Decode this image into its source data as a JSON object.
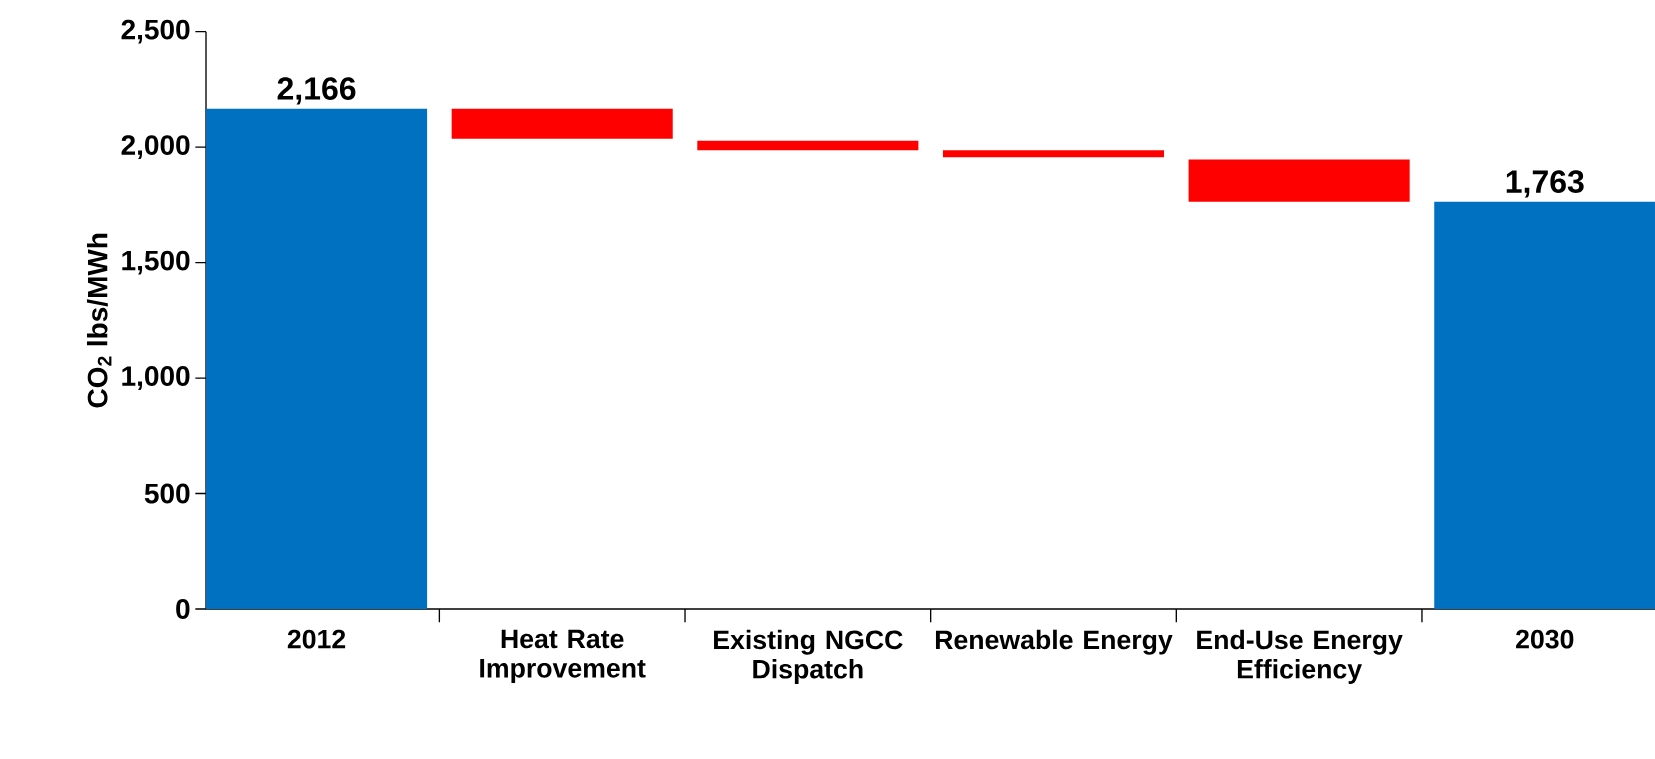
{
  "chart_data": {
    "type": "bar",
    "ylabel": "CO$_{2}$ lbs/MWh",
    "categories": [
      "2012",
      "Heat Rate Improvement",
      "Existing NGCC Dispatch",
      "Renewable Energy",
      "End-Use Energy Efficiency",
      "2030"
    ],
    "values": [
      2166,
      -130,
      -42,
      -30,
      -183,
      1763
    ],
    "base": [
      0,
      2166,
      2028,
      1986,
      1946,
      0
    ],
    "colors": [
      "#0070c0",
      "#ff0000",
      "#ff0000",
      "#ff0000",
      "#ff0000",
      "#0070c0"
    ],
    "value_labels": [
      "2,166",
      null,
      null,
      null,
      null,
      "1,763"
    ],
    "ylim": [
      0,
      2500
    ],
    "yticks": [
      0,
      500,
      {
        "value": 1000,
        "label": "1,000"
      },
      {
        "value": 1500,
        "label": "1,500"
      },
      {
        "value": 2000,
        "label": "2,000"
      },
      {
        "value": 2500,
        "label": "2,500"
      }
    ]
  }
}
